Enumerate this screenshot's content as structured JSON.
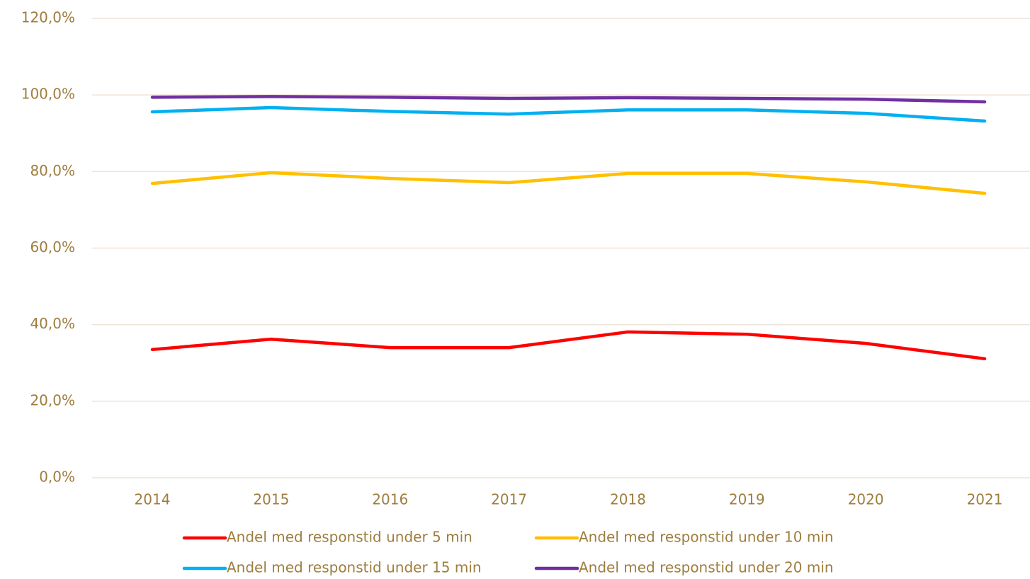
{
  "chart_data": {
    "type": "line",
    "categories": [
      "2014",
      "2015",
      "2016",
      "2017",
      "2018",
      "2019",
      "2020",
      "2021"
    ],
    "series": [
      {
        "name": "Andel med responstid under 5 min",
        "color": "#ff0000",
        "values": [
          33.5,
          36.2,
          34.0,
          34.0,
          38.1,
          37.5,
          35.1,
          31.1
        ]
      },
      {
        "name": "Andel med responstid under 10 min",
        "color": "#ffc000",
        "values": [
          76.9,
          79.7,
          78.2,
          77.1,
          79.5,
          79.5,
          77.3,
          74.3
        ]
      },
      {
        "name": "Andel med responstid under 15 min",
        "color": "#00b0f0",
        "values": [
          95.6,
          96.7,
          95.7,
          95.0,
          96.1,
          96.1,
          95.2,
          93.2
        ]
      },
      {
        "name": "Andel med responstid under 20 min",
        "color": "#7030a0",
        "values": [
          99.4,
          99.6,
          99.4,
          99.1,
          99.3,
          99.1,
          98.9,
          98.2
        ]
      }
    ],
    "ylim": [
      0,
      120
    ],
    "yticks": [
      {
        "value": 0,
        "label": "0,0%"
      },
      {
        "value": 20,
        "label": "20,0%"
      },
      {
        "value": 40,
        "label": "40,0%"
      },
      {
        "value": 60,
        "label": "60,0%"
      },
      {
        "value": 80,
        "label": "80,0%"
      },
      {
        "value": 100,
        "label": "100,0%"
      },
      {
        "value": 120,
        "label": "120,0%"
      }
    ],
    "grid": true,
    "legend": "bottom"
  }
}
